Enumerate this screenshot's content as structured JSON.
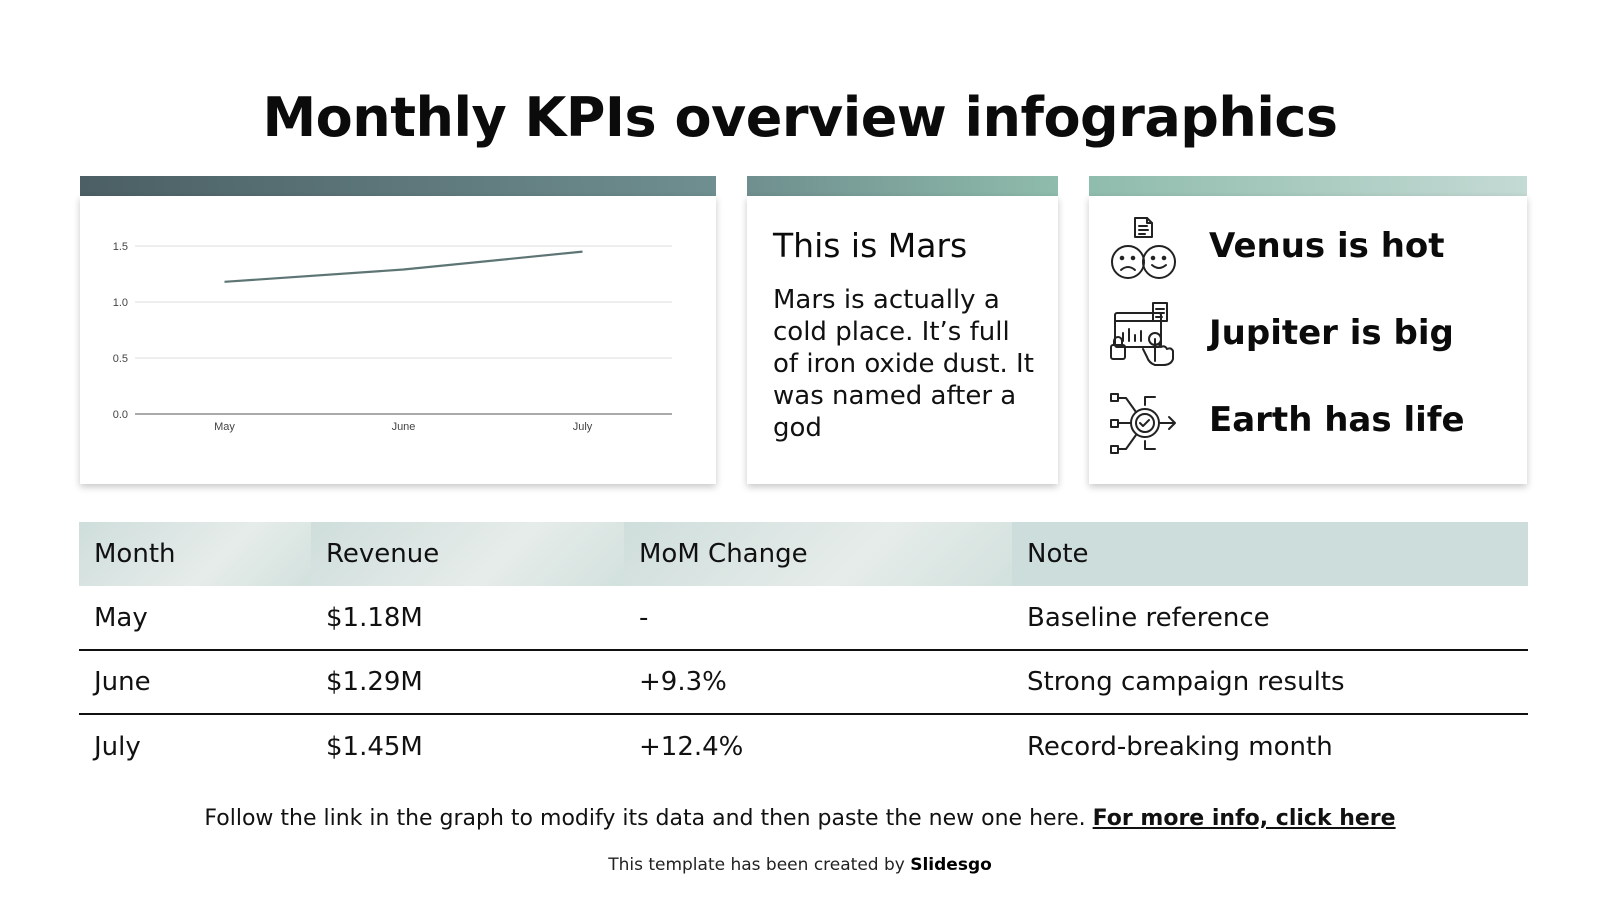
{
  "title": "Monthly KPIs overview infographics",
  "chart_data": {
    "type": "line",
    "categories": [
      "May",
      "June",
      "July"
    ],
    "series": [
      {
        "values": [
          1.18,
          1.29,
          1.45
        ]
      }
    ],
    "y_ticks": [
      "0.0",
      "0.5",
      "1.0",
      "1.5"
    ],
    "ylim": [
      0,
      1.5
    ],
    "grid": true,
    "line_color": "#5e7575"
  },
  "mars": {
    "title": "This is Mars",
    "text": "Mars is actually a cold place. It’s full of iron oxide dust. It was named after a god"
  },
  "planets": [
    {
      "label": "Venus is hot",
      "icon": "emotions-icon"
    },
    {
      "label": "Jupiter is big",
      "icon": "dashboard-touch-icon"
    },
    {
      "label": "Earth has life",
      "icon": "target-network-icon"
    }
  ],
  "table": {
    "headers": [
      "Month",
      "Revenue",
      "MoM Change",
      "Note"
    ],
    "rows": [
      [
        "May",
        "$1.18M",
        "-",
        "Baseline reference"
      ],
      [
        "June",
        "$1.29M",
        "+9.3%",
        "Strong campaign results"
      ],
      [
        "July",
        "$1.45M",
        "+12.4%",
        "Record-breaking month"
      ]
    ]
  },
  "footer": {
    "text": "Follow the link in the graph to modify its data and then paste the new one here.",
    "link": "For more info, click here"
  },
  "credit": {
    "prefix": "This template has been created by",
    "brand": "Slidesgo"
  },
  "colors": {
    "accent_dark": "#4b5f64",
    "accent_mid": "#8fbcac",
    "accent_light": "#c4dad4",
    "table_header": "#ccdddb"
  }
}
